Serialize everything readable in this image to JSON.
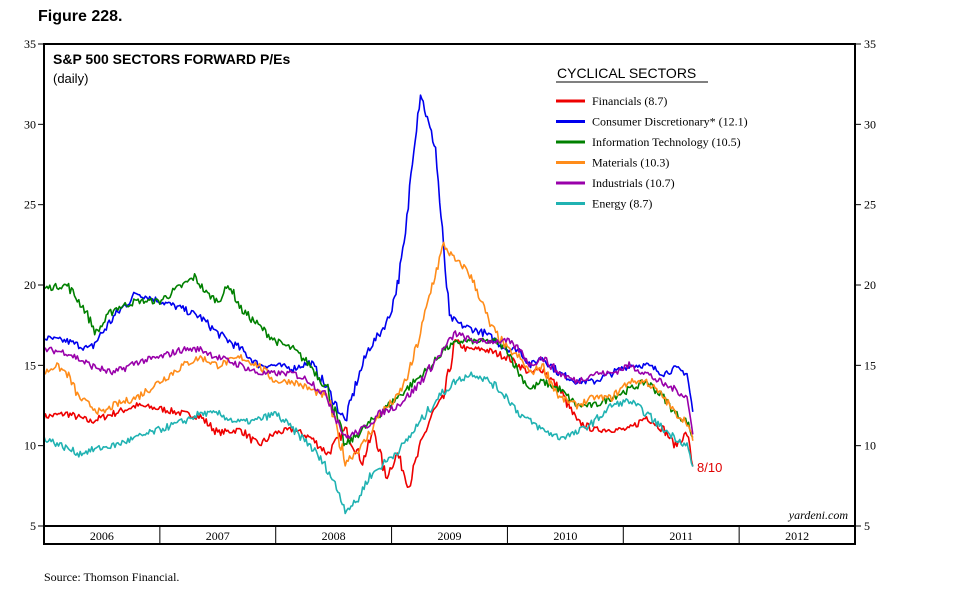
{
  "figure_label": "Figure 228.",
  "source": "Source: Thomson Financial.",
  "chart_data": {
    "type": "line",
    "title": "S&P 500 SECTORS FORWARD P/Es",
    "subtitle": "(daily)",
    "legend_title": "CYCLICAL SECTORS",
    "legend_position": "top-right",
    "watermark": "yardeni.com",
    "end_annotation": "8/10",
    "annotation_color": "#e00000",
    "x_range": [
      2006.0,
      2013.0
    ],
    "x_ticks": [
      "2006",
      "2007",
      "2008",
      "2009",
      "2010",
      "2011",
      "2012"
    ],
    "ylim": [
      5,
      35
    ],
    "y_ticks": [
      "5",
      "10",
      "15",
      "20",
      "25",
      "30",
      "35"
    ],
    "grid": false,
    "series": [
      {
        "name": "Financials (8.7)",
        "color": "#ee0000",
        "points": [
          [
            2006.0,
            11.8
          ],
          [
            2006.2,
            12.0
          ],
          [
            2006.4,
            11.5
          ],
          [
            2006.6,
            12.0
          ],
          [
            2006.8,
            12.5
          ],
          [
            2007.0,
            12.3
          ],
          [
            2007.2,
            12.0
          ],
          [
            2007.35,
            11.8
          ],
          [
            2007.5,
            10.8
          ],
          [
            2007.7,
            11.0
          ],
          [
            2007.85,
            10.0
          ],
          [
            2008.0,
            10.8
          ],
          [
            2008.15,
            11.0
          ],
          [
            2008.3,
            10.5
          ],
          [
            2008.45,
            9.5
          ],
          [
            2008.6,
            11.0
          ],
          [
            2008.75,
            9.0
          ],
          [
            2008.85,
            11.0
          ],
          [
            2008.95,
            8.0
          ],
          [
            2009.05,
            9.5
          ],
          [
            2009.15,
            7.5
          ],
          [
            2009.25,
            10.0
          ],
          [
            2009.35,
            12.0
          ],
          [
            2009.45,
            13.0
          ],
          [
            2009.55,
            16.5
          ],
          [
            2009.65,
            16.0
          ],
          [
            2009.8,
            16.0
          ],
          [
            2010.0,
            15.5
          ],
          [
            2010.1,
            15.0
          ],
          [
            2010.2,
            14.5
          ],
          [
            2010.3,
            14.8
          ],
          [
            2010.45,
            13.5
          ],
          [
            2010.6,
            11.5
          ],
          [
            2010.75,
            11.0
          ],
          [
            2010.9,
            11.0
          ],
          [
            2011.05,
            11.0
          ],
          [
            2011.2,
            11.8
          ],
          [
            2011.35,
            11.0
          ],
          [
            2011.45,
            10.0
          ],
          [
            2011.55,
            10.8
          ],
          [
            2011.6,
            8.7
          ]
        ]
      },
      {
        "name": "Consumer Discretionary* (12.1)",
        "color": "#0000ee",
        "points": [
          [
            2006.0,
            16.7
          ],
          [
            2006.2,
            16.5
          ],
          [
            2006.4,
            16.0
          ],
          [
            2006.6,
            18.0
          ],
          [
            2006.8,
            19.5
          ],
          [
            2007.0,
            19.0
          ],
          [
            2007.2,
            18.5
          ],
          [
            2007.35,
            18.0
          ],
          [
            2007.5,
            17.0
          ],
          [
            2007.7,
            16.0
          ],
          [
            2007.85,
            15.0
          ],
          [
            2008.0,
            15.0
          ],
          [
            2008.15,
            14.8
          ],
          [
            2008.3,
            15.2
          ],
          [
            2008.45,
            13.5
          ],
          [
            2008.6,
            11.5
          ],
          [
            2008.7,
            14.0
          ],
          [
            2008.8,
            16.0
          ],
          [
            2008.9,
            17.0
          ],
          [
            2008.98,
            18.0
          ],
          [
            2009.05,
            20.0
          ],
          [
            2009.12,
            23.0
          ],
          [
            2009.18,
            28.0
          ],
          [
            2009.25,
            32.0
          ],
          [
            2009.32,
            30.0
          ],
          [
            2009.38,
            28.5
          ],
          [
            2009.45,
            22.0
          ],
          [
            2009.5,
            18.0
          ],
          [
            2009.6,
            17.5
          ],
          [
            2009.8,
            17.0
          ],
          [
            2010.0,
            16.0
          ],
          [
            2010.1,
            16.0
          ],
          [
            2010.2,
            15.0
          ],
          [
            2010.3,
            15.5
          ],
          [
            2010.45,
            14.5
          ],
          [
            2010.6,
            14.0
          ],
          [
            2010.75,
            14.0
          ],
          [
            2010.9,
            14.5
          ],
          [
            2011.05,
            15.0
          ],
          [
            2011.2,
            15.0
          ],
          [
            2011.35,
            14.5
          ],
          [
            2011.45,
            14.8
          ],
          [
            2011.55,
            14.5
          ],
          [
            2011.6,
            12.1
          ]
        ]
      },
      {
        "name": "Information Technology (10.5)",
        "color": "#008000",
        "points": [
          [
            2006.0,
            19.8
          ],
          [
            2006.2,
            20.0
          ],
          [
            2006.35,
            18.5
          ],
          [
            2006.45,
            17.0
          ],
          [
            2006.6,
            18.5
          ],
          [
            2006.8,
            19.0
          ],
          [
            2007.0,
            19.0
          ],
          [
            2007.2,
            20.0
          ],
          [
            2007.3,
            20.5
          ],
          [
            2007.4,
            19.5
          ],
          [
            2007.5,
            19.0
          ],
          [
            2007.6,
            20.0
          ],
          [
            2007.7,
            18.5
          ],
          [
            2007.85,
            17.5
          ],
          [
            2008.0,
            16.5
          ],
          [
            2008.15,
            16.0
          ],
          [
            2008.3,
            15.0
          ],
          [
            2008.45,
            13.5
          ],
          [
            2008.6,
            10.0
          ],
          [
            2008.75,
            11.0
          ],
          [
            2008.9,
            12.0
          ],
          [
            2009.05,
            13.0
          ],
          [
            2009.2,
            14.0
          ],
          [
            2009.35,
            15.0
          ],
          [
            2009.45,
            16.0
          ],
          [
            2009.6,
            16.5
          ],
          [
            2009.75,
            16.5
          ],
          [
            2009.9,
            16.5
          ],
          [
            2010.0,
            16.0
          ],
          [
            2010.1,
            14.5
          ],
          [
            2010.2,
            13.5
          ],
          [
            2010.3,
            14.0
          ],
          [
            2010.45,
            13.5
          ],
          [
            2010.6,
            12.5
          ],
          [
            2010.75,
            12.5
          ],
          [
            2010.9,
            13.0
          ],
          [
            2011.05,
            13.5
          ],
          [
            2011.2,
            14.0
          ],
          [
            2011.35,
            13.0
          ],
          [
            2011.45,
            12.0
          ],
          [
            2011.55,
            11.5
          ],
          [
            2011.6,
            10.5
          ]
        ]
      },
      {
        "name": "Materials (10.3)",
        "color": "#ff8c1a",
        "points": [
          [
            2006.0,
            14.5
          ],
          [
            2006.1,
            15.0
          ],
          [
            2006.2,
            14.5
          ],
          [
            2006.3,
            13.0
          ],
          [
            2006.4,
            12.5
          ],
          [
            2006.5,
            12.0
          ],
          [
            2006.6,
            12.5
          ],
          [
            2006.8,
            13.0
          ],
          [
            2007.0,
            14.0
          ],
          [
            2007.2,
            15.0
          ],
          [
            2007.35,
            15.5
          ],
          [
            2007.5,
            15.0
          ],
          [
            2007.7,
            15.5
          ],
          [
            2007.85,
            15.0
          ],
          [
            2008.0,
            14.0
          ],
          [
            2008.15,
            14.0
          ],
          [
            2008.3,
            13.5
          ],
          [
            2008.45,
            13.0
          ],
          [
            2008.6,
            9.0
          ],
          [
            2008.75,
            10.0
          ],
          [
            2008.9,
            12.0
          ],
          [
            2009.05,
            13.0
          ],
          [
            2009.15,
            14.5
          ],
          [
            2009.25,
            17.0
          ],
          [
            2009.35,
            20.0
          ],
          [
            2009.45,
            22.5
          ],
          [
            2009.55,
            21.5
          ],
          [
            2009.65,
            21.0
          ],
          [
            2009.75,
            19.5
          ],
          [
            2009.85,
            17.5
          ],
          [
            2010.0,
            16.0
          ],
          [
            2010.1,
            15.5
          ],
          [
            2010.2,
            14.5
          ],
          [
            2010.3,
            15.0
          ],
          [
            2010.45,
            13.0
          ],
          [
            2010.6,
            12.5
          ],
          [
            2010.75,
            13.0
          ],
          [
            2010.9,
            13.0
          ],
          [
            2011.05,
            14.0
          ],
          [
            2011.2,
            14.0
          ],
          [
            2011.35,
            13.0
          ],
          [
            2011.45,
            12.0
          ],
          [
            2011.55,
            11.5
          ],
          [
            2011.6,
            10.3
          ]
        ]
      },
      {
        "name": "Industrials (10.7)",
        "color": "#9900aa",
        "points": [
          [
            2006.0,
            16.0
          ],
          [
            2006.2,
            15.8
          ],
          [
            2006.4,
            15.0
          ],
          [
            2006.6,
            14.5
          ],
          [
            2006.8,
            15.2
          ],
          [
            2007.0,
            15.5
          ],
          [
            2007.2,
            16.0
          ],
          [
            2007.35,
            16.0
          ],
          [
            2007.5,
            15.5
          ],
          [
            2007.7,
            15.0
          ],
          [
            2007.85,
            14.5
          ],
          [
            2008.0,
            14.5
          ],
          [
            2008.15,
            14.5
          ],
          [
            2008.3,
            14.0
          ],
          [
            2008.45,
            13.0
          ],
          [
            2008.6,
            10.5
          ],
          [
            2008.75,
            11.0
          ],
          [
            2008.9,
            12.0
          ],
          [
            2009.05,
            12.5
          ],
          [
            2009.2,
            13.5
          ],
          [
            2009.35,
            15.0
          ],
          [
            2009.45,
            16.0
          ],
          [
            2009.55,
            17.0
          ],
          [
            2009.7,
            16.5
          ],
          [
            2009.85,
            16.5
          ],
          [
            2010.0,
            16.5
          ],
          [
            2010.1,
            16.0
          ],
          [
            2010.2,
            15.0
          ],
          [
            2010.3,
            15.5
          ],
          [
            2010.45,
            14.5
          ],
          [
            2010.6,
            14.0
          ],
          [
            2010.75,
            14.5
          ],
          [
            2010.9,
            14.5
          ],
          [
            2011.05,
            15.0
          ],
          [
            2011.2,
            14.5
          ],
          [
            2011.35,
            13.8
          ],
          [
            2011.45,
            13.5
          ],
          [
            2011.55,
            13.0
          ],
          [
            2011.6,
            10.7
          ]
        ]
      },
      {
        "name": "Energy (8.7)",
        "color": "#20b2b2",
        "points": [
          [
            2006.0,
            10.5
          ],
          [
            2006.15,
            10.0
          ],
          [
            2006.3,
            9.5
          ],
          [
            2006.45,
            9.8
          ],
          [
            2006.6,
            10.0
          ],
          [
            2006.8,
            10.5
          ],
          [
            2007.0,
            11.0
          ],
          [
            2007.2,
            11.5
          ],
          [
            2007.35,
            12.0
          ],
          [
            2007.5,
            12.0
          ],
          [
            2007.65,
            11.5
          ],
          [
            2007.8,
            11.5
          ],
          [
            2008.0,
            12.0
          ],
          [
            2008.15,
            11.0
          ],
          [
            2008.3,
            10.0
          ],
          [
            2008.45,
            8.5
          ],
          [
            2008.55,
            7.0
          ],
          [
            2008.6,
            6.0
          ],
          [
            2008.7,
            6.5
          ],
          [
            2008.8,
            8.0
          ],
          [
            2008.95,
            9.0
          ],
          [
            2009.1,
            10.0
          ],
          [
            2009.25,
            11.5
          ],
          [
            2009.4,
            13.0
          ],
          [
            2009.55,
            14.0
          ],
          [
            2009.7,
            14.5
          ],
          [
            2009.85,
            14.0
          ],
          [
            2010.0,
            13.0
          ],
          [
            2010.1,
            12.0
          ],
          [
            2010.2,
            11.5
          ],
          [
            2010.3,
            11.0
          ],
          [
            2010.45,
            10.5
          ],
          [
            2010.6,
            10.8
          ],
          [
            2010.75,
            11.5
          ],
          [
            2010.9,
            12.5
          ],
          [
            2011.05,
            12.8
          ],
          [
            2011.2,
            12.0
          ],
          [
            2011.35,
            11.0
          ],
          [
            2011.45,
            10.5
          ],
          [
            2011.55,
            10.0
          ],
          [
            2011.6,
            8.7
          ]
        ]
      }
    ]
  }
}
